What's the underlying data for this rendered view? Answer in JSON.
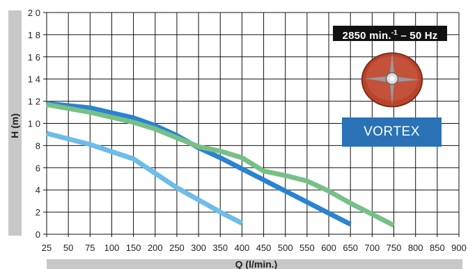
{
  "chart_data": {
    "type": "line",
    "xlabel": "Q (l/min.)",
    "ylabel": "H (m)",
    "xlim": [
      25,
      900
    ],
    "ylim": [
      0,
      20
    ],
    "x_ticks": [
      25,
      50,
      75,
      100,
      150,
      200,
      250,
      300,
      350,
      400,
      450,
      500,
      550,
      600,
      650,
      700,
      750,
      800,
      850,
      900
    ],
    "y_ticks": [
      0,
      2,
      4,
      6,
      8,
      10,
      12,
      14,
      16,
      18,
      20
    ],
    "y_tick_labels": [
      "0",
      "2",
      "4",
      "6",
      "8",
      "1 0",
      "1 2",
      "1 4",
      "1 6",
      "1 8",
      "2 0"
    ],
    "grid": true,
    "series": [
      {
        "color": "#6dbde8",
        "x": [
          25,
          75,
          150,
          200,
          250,
          300,
          350,
          400
        ],
        "y": [
          9.1,
          8.1,
          6.8,
          5.5,
          4.2,
          3.1,
          2.0,
          1.0
        ]
      },
      {
        "color": "#2a83d0",
        "x": [
          25,
          75,
          150,
          200,
          250,
          300,
          350,
          400,
          450,
          500,
          550,
          600,
          650
        ],
        "y": [
          11.8,
          11.4,
          10.5,
          9.8,
          8.9,
          7.8,
          6.9,
          5.9,
          4.9,
          3.9,
          2.9,
          1.9,
          0.9
        ]
      },
      {
        "color": "#77c088",
        "x": [
          25,
          75,
          150,
          200,
          250,
          300,
          350,
          400,
          450,
          500,
          550,
          600,
          650,
          700,
          750
        ],
        "y": [
          11.7,
          11.0,
          10.1,
          9.5,
          8.7,
          7.9,
          7.5,
          6.9,
          5.7,
          5.3,
          4.8,
          3.9,
          2.8,
          1.8,
          0.8
        ]
      }
    ]
  },
  "badge": {
    "text": "2850 min.-1 – 50 Hz"
  },
  "label": {
    "vortex": "VORTEX"
  },
  "colors": {
    "axis_band": "#c8c8c8",
    "grid": "#111111",
    "vortex_bg": "#2a72b5",
    "impeller": "#b8442a"
  },
  "icons": {
    "impeller": "vortex-impeller-image"
  }
}
